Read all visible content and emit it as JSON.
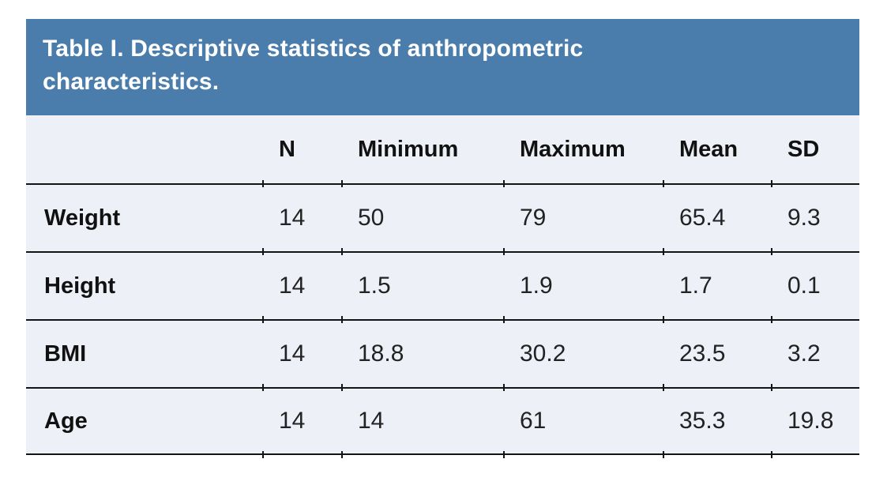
{
  "chart_data": {
    "type": "table",
    "title": "Table I. Descriptive statistics of anthropometric characteristics.",
    "columns": [
      "",
      "N",
      "Minimum",
      "Maximum",
      "Mean",
      "SD"
    ],
    "rows": [
      [
        "Weight",
        "14",
        "50",
        "79",
        "65.4",
        "9.3"
      ],
      [
        "Height",
        "14",
        "1.5",
        "1.9",
        "1.7",
        "0.1"
      ],
      [
        "BMI",
        "14",
        "18.8",
        "30.2",
        "23.5",
        "3.2"
      ],
      [
        "Age",
        "14",
        "14",
        "61",
        "35.3",
        "19.8"
      ]
    ]
  },
  "colors": {
    "title_band_bg": "#4a7dab",
    "title_text": "#ffffff",
    "row_bg": "#edf0f6",
    "divider": "#141414",
    "body_text": "#1c1c1c",
    "page_bg": "#ffffff"
  }
}
